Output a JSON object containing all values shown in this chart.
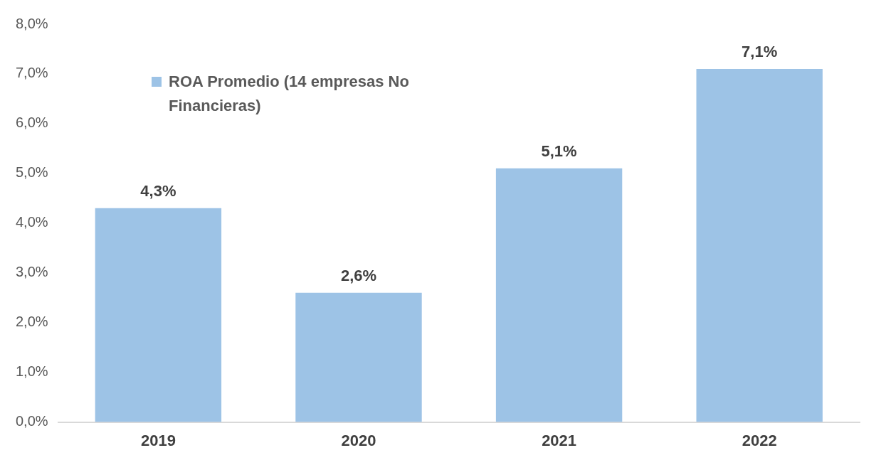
{
  "chart_data": {
    "type": "bar",
    "categories": [
      "2019",
      "2020",
      "2021",
      "2022"
    ],
    "series": [
      {
        "name": "ROA Promedio (14 empresas No Financieras)",
        "color": "#9dc3e6",
        "values": [
          4.3,
          2.6,
          5.1,
          7.1
        ],
        "value_labels": [
          "4,3%",
          "2,6%",
          "5,1%",
          "7,1%"
        ]
      }
    ],
    "ylim": [
      0,
      8
    ],
    "yticks": [
      {
        "value": 0,
        "label": "0,0%"
      },
      {
        "value": 1,
        "label": "1,0%"
      },
      {
        "value": 2,
        "label": "2,0%"
      },
      {
        "value": 3,
        "label": "3,0%"
      },
      {
        "value": 4,
        "label": "4,0%"
      },
      {
        "value": 5,
        "label": "5,0%"
      },
      {
        "value": 6,
        "label": "6,0%"
      },
      {
        "value": 7,
        "label": "7,0%"
      },
      {
        "value": 8,
        "label": "8,0%"
      }
    ],
    "grid": false,
    "legend": "top left"
  }
}
